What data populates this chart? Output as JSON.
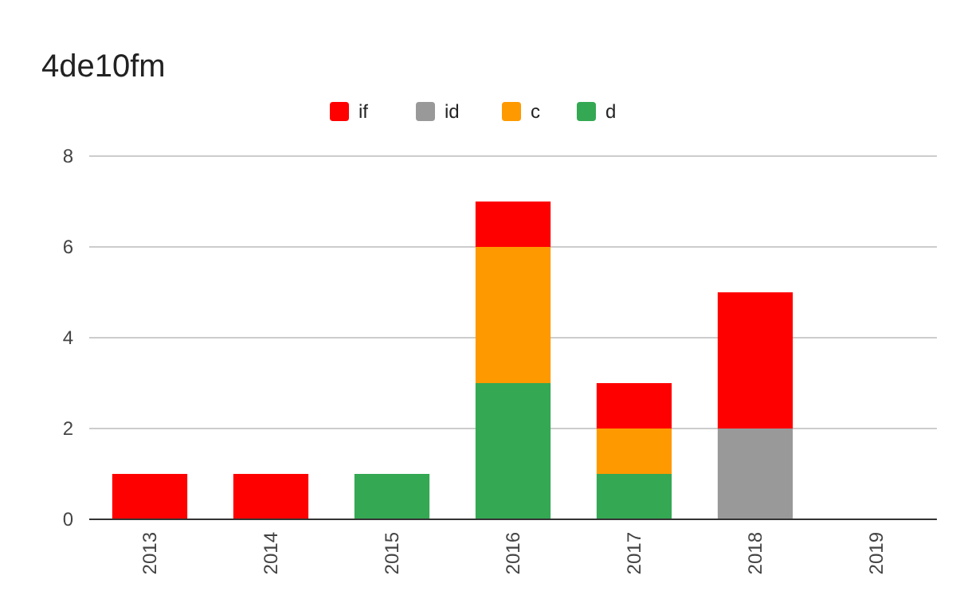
{
  "chart_data": {
    "type": "bar",
    "title": "4de10fm",
    "stacked": true,
    "categories": [
      "2013",
      "2014",
      "2015",
      "2016",
      "2017",
      "2018",
      "2019"
    ],
    "series": [
      {
        "name": "d",
        "color": "#34a853",
        "values": [
          0,
          0,
          1,
          3,
          1,
          0,
          0
        ]
      },
      {
        "name": "c",
        "color": "#ff9900",
        "values": [
          0,
          0,
          0,
          3,
          1,
          0,
          0
        ]
      },
      {
        "name": "id",
        "color": "#999999",
        "values": [
          0,
          0,
          0,
          0,
          0,
          2,
          0
        ]
      },
      {
        "name": "if",
        "color": "#ff0000",
        "values": [
          1,
          1,
          0,
          1,
          1,
          3,
          0
        ]
      }
    ],
    "ylim": [
      0,
      8
    ],
    "yticks": [
      0,
      2,
      4,
      6,
      8
    ],
    "grid": "y",
    "legend": "top"
  }
}
